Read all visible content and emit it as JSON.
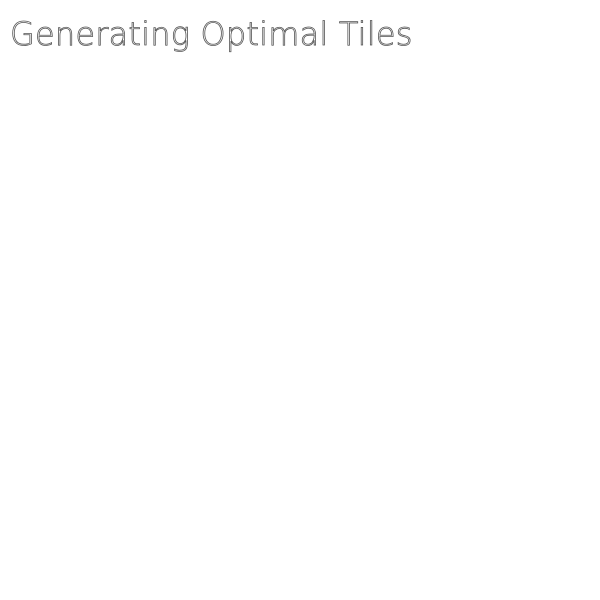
{
  "screen": {
    "status_title": "Generating Optimal Tiles",
    "background_color": "#ffffff",
    "text_outline_color": "#555555"
  }
}
